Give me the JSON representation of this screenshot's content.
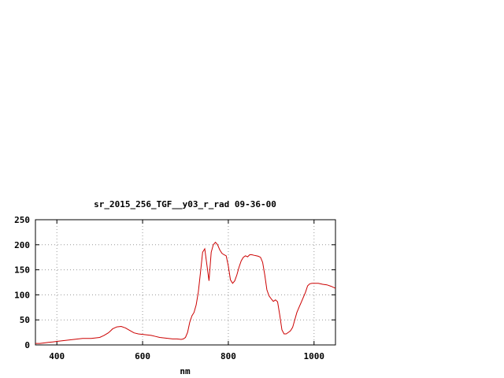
{
  "chart_data": {
    "type": "line",
    "title": "sr_2015_256_TGF__y03_r_rad 09-36-00",
    "xlabel": "nm",
    "ylabel": "",
    "xlim": [
      350,
      1050
    ],
    "ylim": [
      0,
      250
    ],
    "x_ticks": [
      400,
      600,
      800,
      1000
    ],
    "y_ticks": [
      0,
      50,
      100,
      150,
      200,
      250
    ],
    "grid": true,
    "line_color": "#cc0000",
    "series": [
      {
        "x": [
          350,
          360,
          370,
          380,
          390,
          400,
          410,
          420,
          430,
          440,
          450,
          460,
          470,
          480,
          490,
          500,
          510,
          520,
          525,
          530,
          540,
          550,
          560,
          570,
          580,
          590,
          600,
          610,
          620,
          630,
          640,
          650,
          660,
          670,
          680,
          690,
          695,
          700,
          705,
          710,
          715,
          720,
          725,
          730,
          735,
          740,
          745,
          750,
          755,
          760,
          765,
          770,
          775,
          780,
          785,
          790,
          795,
          800,
          805,
          810,
          815,
          820,
          825,
          830,
          835,
          840,
          845,
          850,
          855,
          860,
          865,
          870,
          875,
          880,
          885,
          890,
          895,
          900,
          905,
          910,
          915,
          920,
          925,
          930,
          935,
          940,
          945,
          950,
          955,
          960,
          965,
          970,
          975,
          980,
          985,
          990,
          995,
          1000,
          1010,
          1020,
          1030,
          1040,
          1050
        ],
        "values": [
          3,
          3,
          4,
          5,
          6,
          7,
          8,
          9,
          10,
          11,
          12,
          13,
          13,
          13,
          14,
          15,
          19,
          24,
          28,
          32,
          36,
          37,
          34,
          29,
          24,
          22,
          21,
          20,
          19,
          17,
          15,
          14,
          13,
          12,
          12,
          11,
          12,
          15,
          25,
          45,
          58,
          65,
          80,
          105,
          145,
          185,
          192,
          160,
          128,
          185,
          200,
          205,
          200,
          190,
          183,
          180,
          178,
          158,
          130,
          123,
          128,
          140,
          155,
          168,
          175,
          178,
          176,
          180,
          180,
          179,
          178,
          177,
          175,
          165,
          140,
          110,
          98,
          92,
          87,
          90,
          86,
          60,
          30,
          22,
          22,
          25,
          28,
          35,
          50,
          65,
          75,
          85,
          95,
          105,
          118,
          122,
          123,
          123,
          123,
          121,
          120,
          117,
          113
        ]
      }
    ]
  }
}
